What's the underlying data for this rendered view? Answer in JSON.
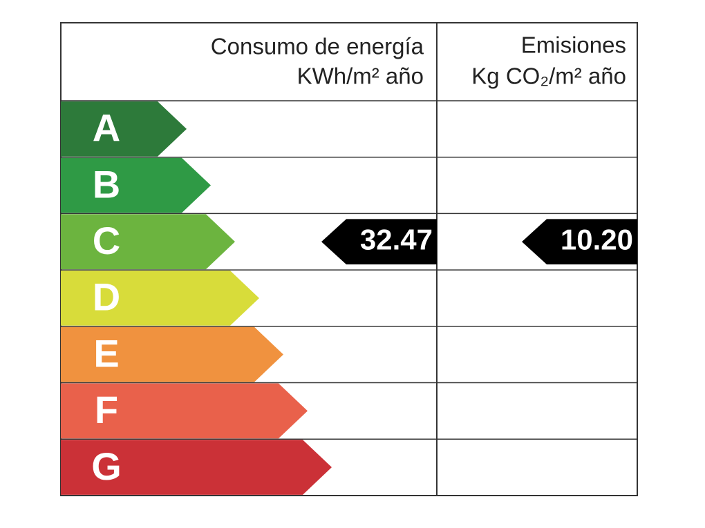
{
  "header": {
    "energy_title": "Consumo de energía",
    "energy_unit": "KWh/m² año",
    "emissions_title": "Emisiones",
    "emissions_unit": "Kg CO₂/m² año"
  },
  "classes": [
    {
      "letter": "A",
      "color": "#2d7a3a"
    },
    {
      "letter": "B",
      "color": "#2f9a45"
    },
    {
      "letter": "C",
      "color": "#6cb43f"
    },
    {
      "letter": "D",
      "color": "#d8dc3a"
    },
    {
      "letter": "E",
      "color": "#f0923f"
    },
    {
      "letter": "F",
      "color": "#e9614b"
    },
    {
      "letter": "G",
      "color": "#cb3137"
    }
  ],
  "rating": {
    "class_index": 2,
    "energy_value": "32.47",
    "emissions_value": "10.20"
  }
}
